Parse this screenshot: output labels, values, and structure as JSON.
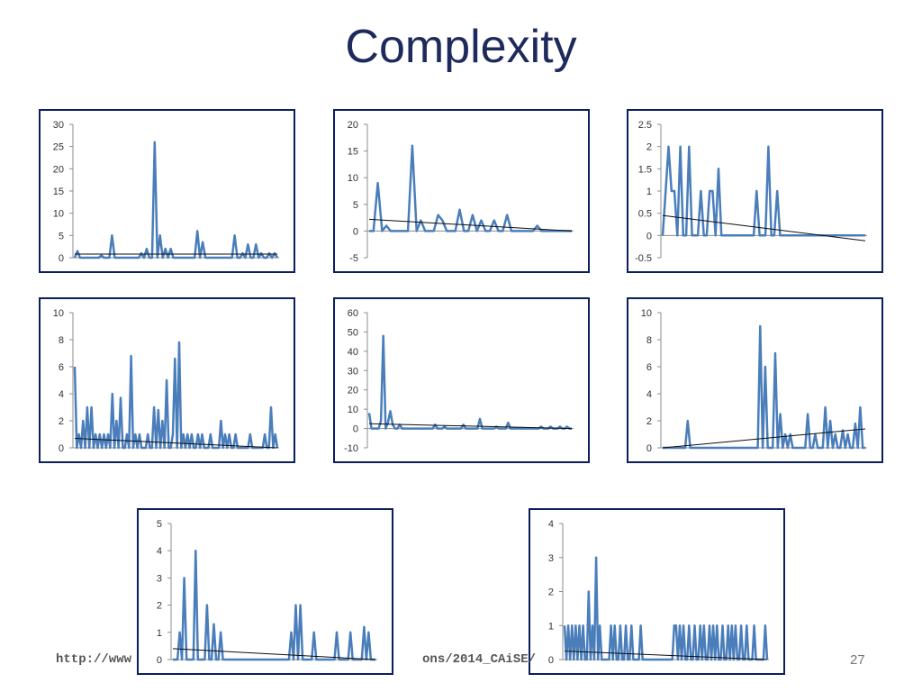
{
  "slide": {
    "title": "Complexity",
    "footer_url_visible": "http://www",
    "footer_url_tail": "ons/2014_CAiSE/",
    "page_number": "27"
  },
  "colors": {
    "series": "#4a7ebb",
    "trend": "#0d0d0d",
    "frame": "#0a1f5c",
    "title": "#1f2a5c"
  },
  "chart_data": [
    {
      "type": "line",
      "ylim": [
        0,
        30
      ],
      "yticks": [
        "0",
        "5",
        "10",
        "15",
        "20",
        "25",
        "30"
      ],
      "values": [
        0,
        1.5,
        0,
        0,
        0,
        0,
        0,
        0,
        0,
        0,
        0.5,
        0,
        0,
        0,
        5,
        0,
        0,
        0,
        0,
        0,
        0,
        0,
        0,
        0,
        0,
        1,
        0,
        2,
        0,
        0,
        26,
        0,
        5,
        0,
        2,
        0,
        2,
        0,
        0,
        0,
        0,
        0,
        0,
        0,
        0,
        0,
        6,
        0,
        3.5,
        0,
        0,
        0,
        0,
        0,
        0,
        0,
        0,
        0,
        0,
        0,
        5,
        0,
        0,
        1,
        0,
        3,
        0,
        0,
        3,
        0,
        1,
        0,
        0,
        1,
        0,
        1,
        0
      ],
      "trend": [
        0.8,
        0.8
      ]
    },
    {
      "type": "line",
      "ylim": [
        -5,
        20
      ],
      "yticks": [
        "-5",
        "0",
        "5",
        "10",
        "15",
        "20"
      ],
      "values": [
        0,
        0,
        9,
        0,
        1,
        0,
        0,
        0,
        0,
        0,
        16,
        0,
        2,
        0,
        0,
        0,
        3,
        2,
        0,
        0,
        0,
        4,
        0,
        0,
        3,
        0,
        2,
        0,
        0,
        2,
        0,
        0,
        3,
        0,
        0,
        0,
        0,
        0,
        0,
        1,
        0,
        0,
        0,
        0,
        0,
        0,
        0,
        0
      ],
      "trend": [
        2.2,
        0
      ]
    },
    {
      "type": "line",
      "ylim": [
        -0.5,
        2.5
      ],
      "yticks": [
        "-0.5",
        "0",
        "0.5",
        "1",
        "1.5",
        "2",
        "2.5"
      ],
      "values": [
        0,
        1,
        2,
        1,
        1,
        0,
        2,
        0,
        0,
        2,
        0,
        0,
        0,
        1,
        0,
        0,
        1,
        1,
        0,
        1.5,
        0,
        0,
        0,
        0,
        0,
        0,
        0,
        0,
        0,
        0,
        0,
        0,
        1,
        0,
        0,
        0,
        2,
        0,
        0,
        1,
        0,
        0,
        0,
        0,
        0,
        0,
        0,
        0,
        0,
        0,
        0,
        0,
        0,
        0,
        0,
        0,
        0,
        0,
        0,
        0,
        0,
        0,
        0,
        0,
        0,
        0,
        0,
        0,
        0,
        0
      ],
      "trend": [
        0.45,
        -0.12
      ]
    },
    {
      "type": "line",
      "ylim": [
        0,
        10
      ],
      "yticks": [
        "0",
        "2",
        "4",
        "6",
        "8",
        "10"
      ],
      "values": [
        6,
        0,
        1,
        0,
        2,
        0,
        3,
        0,
        3,
        0,
        1,
        0,
        1,
        0,
        1,
        0,
        1,
        0,
        4,
        0,
        2,
        0,
        3.7,
        0,
        0,
        1,
        0,
        6.8,
        0,
        1,
        0,
        1,
        0,
        0,
        0,
        1,
        0,
        0,
        3,
        0,
        2.8,
        0,
        2,
        0,
        5,
        0,
        0,
        1,
        6.6,
        0,
        7.8,
        0,
        1,
        0,
        1,
        0,
        1,
        0,
        0,
        1,
        0,
        1,
        0,
        0,
        0,
        1,
        0,
        0,
        0,
        0,
        2,
        0,
        1,
        0,
        1,
        0,
        0,
        1,
        0,
        0,
        0,
        0,
        0,
        0,
        1,
        0,
        0,
        0,
        0,
        0,
        0,
        1,
        0,
        0,
        3,
        0,
        1,
        0
      ],
      "trend": [
        0.7,
        0
      ]
    },
    {
      "type": "line",
      "ylim": [
        -10,
        60
      ],
      "yticks": [
        "-10",
        "0",
        "10",
        "20",
        "30",
        "40",
        "50",
        "60"
      ],
      "values": [
        8,
        0,
        0,
        0,
        0,
        4,
        48,
        0,
        3,
        9,
        2,
        0,
        0,
        2,
        0,
        0,
        0,
        0,
        0,
        0,
        0,
        0,
        0,
        0,
        0,
        0,
        0,
        0,
        2,
        0,
        0,
        0,
        1,
        0,
        0,
        0,
        0,
        0,
        0,
        0,
        2,
        0,
        0,
        0,
        0,
        0,
        0,
        5,
        0,
        0,
        0,
        0,
        0,
        0,
        1,
        0,
        0,
        0,
        0,
        3,
        0,
        0,
        0,
        0,
        0,
        0,
        0,
        0,
        0,
        0,
        0,
        0,
        0,
        1,
        0,
        0,
        0,
        1,
        0,
        0,
        0,
        1,
        0,
        0,
        1,
        0,
        0
      ],
      "trend": [
        2.5,
        0
      ]
    },
    {
      "type": "line",
      "ylim": [
        0,
        10
      ],
      "yticks": [
        "0",
        "2",
        "4",
        "6",
        "8",
        "10"
      ],
      "values": [
        0,
        0,
        0,
        0,
        0,
        0,
        0,
        0,
        0,
        0,
        2,
        0,
        0,
        0,
        0,
        0,
        0,
        0,
        0,
        0,
        0,
        0,
        0,
        0,
        0,
        0,
        0,
        0,
        0,
        0,
        0,
        0,
        0,
        0,
        0,
        0,
        0,
        0,
        0,
        9,
        0,
        6,
        0,
        0,
        0,
        7,
        0,
        2.5,
        0,
        1,
        0,
        1,
        0,
        0,
        0,
        0,
        0,
        0,
        2.5,
        0,
        0,
        1,
        0,
        0,
        0,
        3,
        0,
        2,
        0,
        1,
        0,
        0,
        1.3,
        0,
        1,
        0,
        0,
        1.8,
        0,
        3,
        0,
        0
      ],
      "trend": [
        0,
        1.4
      ]
    },
    {
      "type": "line",
      "ylim": [
        0,
        5
      ],
      "yticks": [
        "0",
        "1",
        "2",
        "3",
        "4",
        "5"
      ],
      "values": [
        0,
        0,
        0,
        1,
        0,
        3,
        0,
        0,
        0,
        0,
        4,
        0,
        0,
        0,
        0,
        2,
        0,
        0,
        1.3,
        0,
        0,
        1,
        0,
        0,
        0,
        0,
        0,
        0,
        0,
        0,
        0,
        0,
        0,
        0,
        0,
        0,
        0,
        0,
        0,
        0,
        0,
        0,
        0,
        0,
        0,
        0,
        0,
        0,
        0,
        0,
        0,
        0,
        1,
        0,
        2,
        0,
        2,
        0,
        0,
        0,
        0,
        0,
        1,
        0,
        0,
        0,
        0,
        0,
        0,
        0,
        0,
        0,
        1,
        0,
        0,
        0,
        0,
        0,
        1,
        0,
        0,
        0,
        0,
        0,
        1.2,
        0,
        1,
        0,
        0,
        0
      ],
      "trend": [
        0.4,
        0
      ]
    },
    {
      "type": "line",
      "ylim": [
        0,
        4
      ],
      "yticks": [
        "0",
        "1",
        "2",
        "3",
        "4"
      ],
      "values": [
        1,
        0,
        1,
        0,
        1,
        0,
        1,
        0,
        1,
        0,
        1,
        0,
        0,
        2,
        0,
        1,
        0,
        3,
        0,
        1,
        0,
        0,
        0,
        0,
        0,
        1,
        0,
        1,
        0,
        0,
        1,
        0,
        0,
        1,
        0,
        0,
        1,
        0,
        0,
        0,
        0,
        1,
        0,
        0,
        0,
        0,
        0,
        0,
        0,
        0,
        0,
        0,
        0,
        0,
        0,
        0,
        0,
        0,
        0,
        1,
        1,
        0,
        1,
        0,
        1,
        0,
        0,
        1,
        0,
        0,
        1,
        0,
        0,
        1,
        0,
        1,
        0,
        0,
        1,
        0,
        1,
        0,
        1,
        0,
        0,
        1,
        0,
        0,
        1,
        0,
        1,
        0,
        1,
        0,
        0,
        1,
        0,
        0,
        1,
        0,
        0,
        0,
        1,
        0,
        0,
        0,
        0,
        0,
        1,
        0
      ],
      "trend": [
        0.25,
        0
      ]
    }
  ]
}
